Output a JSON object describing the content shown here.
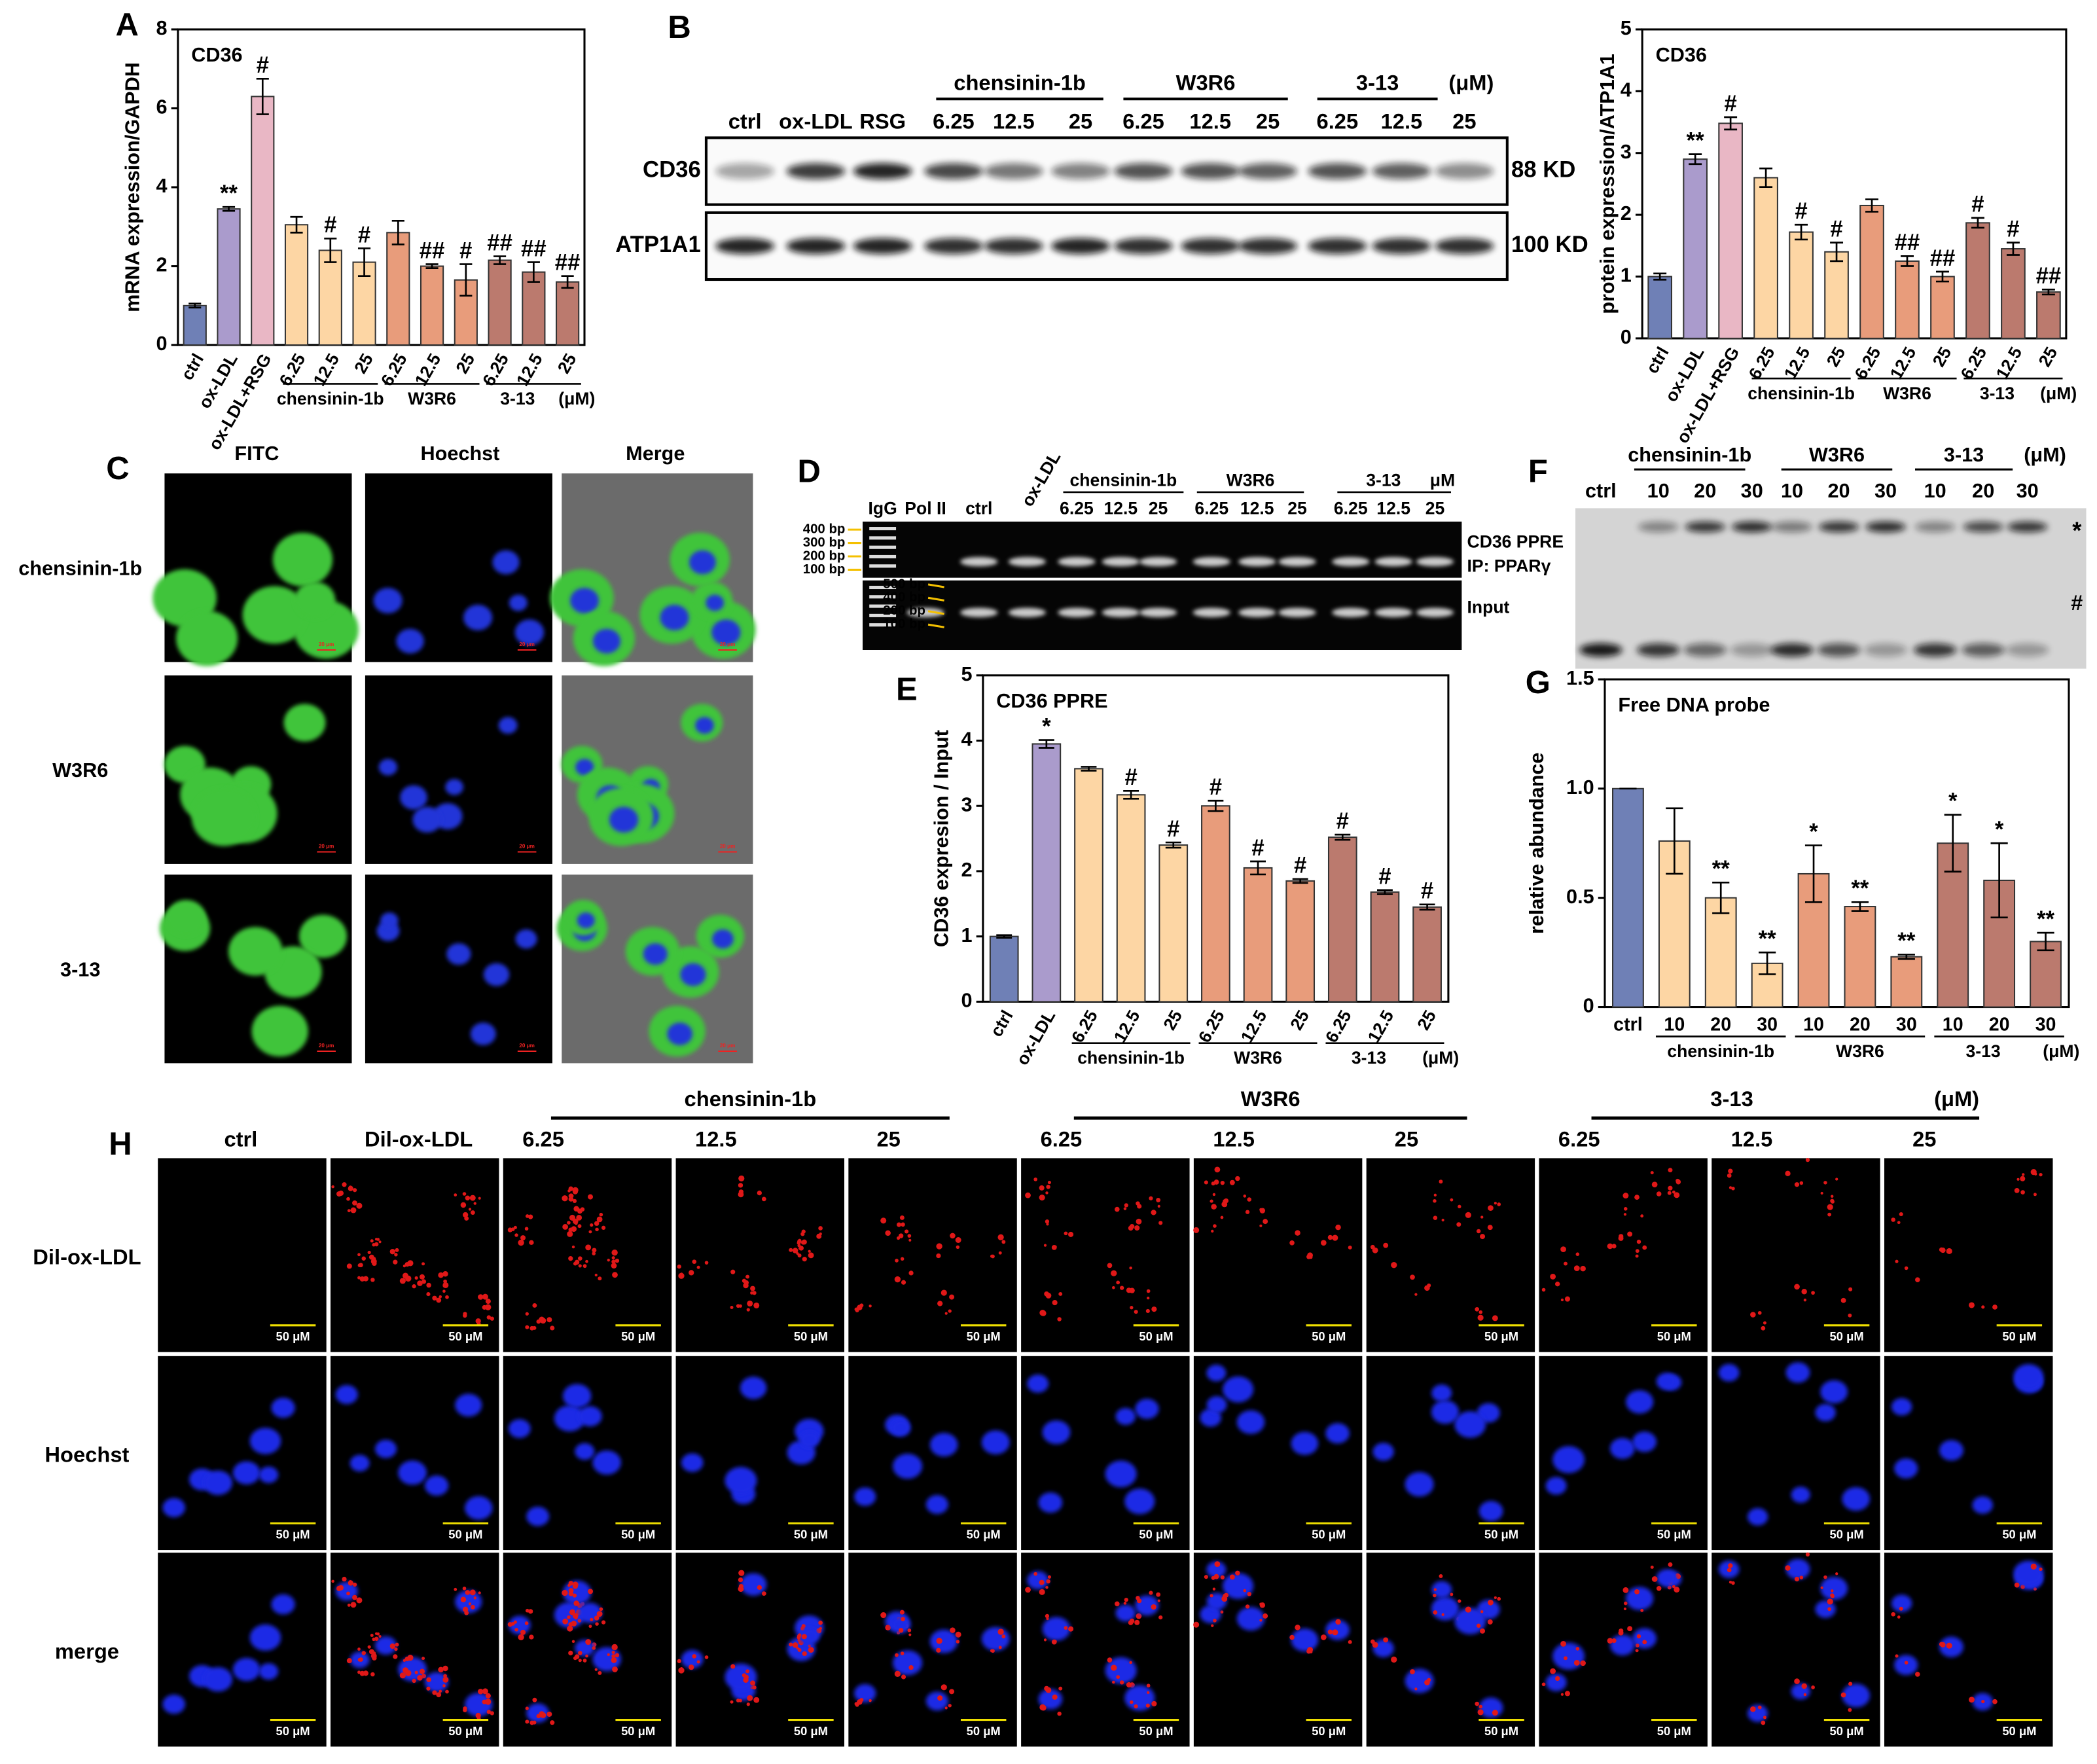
{
  "figure": {
    "panel_letters": [
      "A",
      "B",
      "C",
      "D",
      "E",
      "F",
      "G",
      "H"
    ],
    "blot_B": {
      "groups": [
        "chensinin-1b",
        "W3R6",
        "3-13"
      ],
      "unit": "(μM)",
      "lanes": [
        "ctrl",
        "ox-LDL",
        "RSG",
        "6.25",
        "12.5",
        "25",
        "6.25",
        "12.5",
        "25",
        "6.25",
        "12.5",
        "25"
      ],
      "rows": [
        {
          "label": "CD36",
          "size": "88 KD"
        },
        {
          "label": "ATP1A1",
          "size": "100 KD"
        }
      ]
    },
    "panel_C": {
      "columns": [
        "FITC",
        "Hoechst",
        "Merge"
      ],
      "rows": [
        "chensinin-1b",
        "W3R6",
        "3-13"
      ],
      "scale_label": "20 μm"
    },
    "panel_D": {
      "lanes": [
        "IgG",
        "Pol II",
        "ctrl",
        "ox-LDL",
        "6.25",
        "12.5",
        "25",
        "6.25",
        "12.5",
        "25",
        "6.25",
        "12.5",
        "25"
      ],
      "groups": [
        "chensinin-1b",
        "W3R6",
        "3-13"
      ],
      "unit": "μM",
      "ladder_top": [
        "400 bp",
        "300 bp",
        "200 bp",
        "100 bp"
      ],
      "ladder_bottom": [
        "500 bp",
        "400 bp",
        "200 bp",
        "100 bp"
      ],
      "row_labels": [
        "CD36 PPRE",
        "IP: PPARγ",
        "Input"
      ]
    },
    "panel_F": {
      "lanes": [
        "ctrl",
        "10",
        "20",
        "30",
        "10",
        "20",
        "30",
        "10",
        "20",
        "30"
      ],
      "groups": [
        "chensinin-1b",
        "W3R6",
        "3-13"
      ],
      "unit": "(μM)",
      "band_markers": [
        "*",
        "#"
      ]
    },
    "panel_H": {
      "columns": [
        "ctrl",
        "Dil-ox-LDL",
        "6.25",
        "12.5",
        "25",
        "6.25",
        "12.5",
        "25",
        "6.25",
        "12.5",
        "25"
      ],
      "groups": [
        "chensinin-1b",
        "W3R6",
        "3-13"
      ],
      "unit": "(μM)",
      "rows": [
        "Dil-ox-LDL",
        "Hoechst",
        "merge"
      ],
      "scale_label": "50 μM"
    }
  },
  "chart_data": [
    {
      "type": "bar",
      "title": "CD36",
      "y_label": "mRNA expression/GAPDH",
      "categories": [
        "ctrl",
        "ox-LDL",
        "ox-LDL+RSG",
        "6.25",
        "12.5",
        "25",
        "6.25",
        "12.5",
        "25",
        "6.25",
        "12.5",
        "25"
      ],
      "values": [
        1.0,
        3.45,
        6.3,
        3.05,
        2.4,
        2.1,
        2.85,
        2.0,
        1.65,
        2.15,
        1.85,
        1.6
      ],
      "errors": [
        0.05,
        0.05,
        0.45,
        0.2,
        0.3,
        0.35,
        0.3,
        0.05,
        0.4,
        0.1,
        0.25,
        0.15
      ],
      "annotations": [
        null,
        "**",
        "#",
        null,
        "#",
        "#",
        null,
        "##",
        "#",
        "##",
        "##",
        "##"
      ],
      "colors": [
        "#6f80b6",
        "#aa9bcc",
        "#e9b7c5",
        "#fdd6a4",
        "#fdd6a4",
        "#fdd6a4",
        "#e89c7b",
        "#e89c7b",
        "#e89c7b",
        "#bb7a6e",
        "#bb7a6e",
        "#bb7a6e"
      ],
      "groups": [
        "chensinin-1b",
        "W3R6",
        "3-13"
      ],
      "unit": "(μM)",
      "ylim": [
        0,
        8
      ],
      "yticks": [
        0,
        2,
        4,
        6,
        8
      ]
    },
    {
      "type": "bar",
      "title": "CD36",
      "y_label": "protein expression/ATP1A1",
      "categories": [
        "ctrl",
        "ox-LDL",
        "ox-LDL+RSG",
        "6.25",
        "12.5",
        "25",
        "6.25",
        "12.5",
        "25",
        "6.25",
        "12.5",
        "25"
      ],
      "values": [
        1.0,
        2.9,
        3.48,
        2.6,
        1.72,
        1.4,
        2.15,
        1.25,
        1.0,
        1.87,
        1.45,
        0.75
      ],
      "errors": [
        0.05,
        0.08,
        0.1,
        0.15,
        0.12,
        0.15,
        0.1,
        0.08,
        0.08,
        0.08,
        0.1,
        0.04
      ],
      "annotations": [
        null,
        "**",
        "#",
        null,
        "#",
        "#",
        null,
        "##",
        "##",
        "#",
        "#",
        "##"
      ],
      "colors": [
        "#6f80b6",
        "#aa9bcc",
        "#e9b7c5",
        "#fdd6a4",
        "#fdd6a4",
        "#fdd6a4",
        "#e89c7b",
        "#e89c7b",
        "#e89c7b",
        "#bb7a6e",
        "#bb7a6e",
        "#bb7a6e"
      ],
      "groups": [
        "chensinin-1b",
        "W3R6",
        "3-13"
      ],
      "unit": "(μM)",
      "ylim": [
        0,
        5
      ],
      "yticks": [
        0,
        1,
        2,
        3,
        4,
        5
      ]
    },
    {
      "type": "bar",
      "title": "CD36 PPRE",
      "y_label": "CD36 expresion / Input",
      "categories": [
        "ctrl",
        "ox-LDL",
        "6.25",
        "12.5",
        "25",
        "6.25",
        "12.5",
        "25",
        "6.25",
        "12.5",
        "25"
      ],
      "values": [
        1.0,
        3.95,
        3.57,
        3.17,
        2.4,
        3.0,
        2.05,
        1.85,
        2.52,
        1.68,
        1.45
      ],
      "errors": [
        0.02,
        0.06,
        0.03,
        0.06,
        0.04,
        0.08,
        0.1,
        0.03,
        0.04,
        0.03,
        0.04
      ],
      "annotations": [
        null,
        "*",
        null,
        "#",
        "#",
        "#",
        "#",
        "#",
        "#",
        "#",
        "#"
      ],
      "colors": [
        "#6f80b6",
        "#aa9bcc",
        "#fdd6a4",
        "#fdd6a4",
        "#fdd6a4",
        "#e89c7b",
        "#e89c7b",
        "#e89c7b",
        "#bb7a6e",
        "#bb7a6e",
        "#bb7a6e"
      ],
      "groups": [
        "chensinin-1b",
        "W3R6",
        "3-13"
      ],
      "unit": "(μM)",
      "ylim": [
        0,
        5
      ],
      "yticks": [
        0,
        1,
        2,
        3,
        4,
        5
      ]
    },
    {
      "type": "bar",
      "title": "Free DNA probe",
      "y_label": "relative abundance",
      "categories": [
        "ctrl",
        "10",
        "20",
        "30",
        "10",
        "20",
        "30",
        "10",
        "20",
        "30"
      ],
      "values": [
        1.0,
        0.76,
        0.5,
        0.2,
        0.61,
        0.46,
        0.23,
        0.75,
        0.58,
        0.3
      ],
      "errors": [
        0,
        0.15,
        0.07,
        0.05,
        0.13,
        0.02,
        0.01,
        0.13,
        0.17,
        0.04
      ],
      "annotations": [
        null,
        null,
        "**",
        "**",
        "*",
        "**",
        "**",
        "*",
        "*",
        "**"
      ],
      "colors": [
        "#6f80b6",
        "#fdd6a4",
        "#fdd6a4",
        "#fdd6a4",
        "#e89c7b",
        "#e89c7b",
        "#e89c7b",
        "#bb7a6e",
        "#bb7a6e",
        "#bb7a6e"
      ],
      "groups": [
        "chensinin-1b",
        "W3R6",
        "3-13"
      ],
      "unit": "(μM)",
      "ylim": [
        0,
        1.5
      ],
      "yticks": [
        0,
        0.5,
        {
          "value": 1,
          "label": "1.0"
        },
        1.5
      ]
    }
  ]
}
